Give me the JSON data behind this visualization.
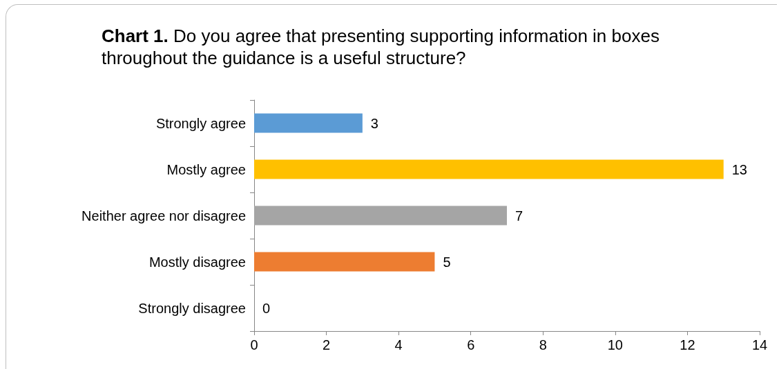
{
  "chart_data": {
    "type": "bar",
    "orientation": "horizontal",
    "title": "Chart 1. Do you agree that presenting supporting information in boxes throughout the guidance is a useful structure?",
    "categories": [
      "Strongly agree",
      "Mostly agree",
      "Neither agree nor disagree",
      "Mostly disagree",
      "Strongly disagree"
    ],
    "values": [
      3,
      13,
      7,
      5,
      0
    ],
    "colors": [
      "#5b9bd5",
      "#ffc000",
      "#a5a5a5",
      "#ed7d31",
      "#4472c4"
    ],
    "xlim": [
      0,
      14
    ],
    "xticks": [
      0,
      2,
      4,
      6,
      8,
      10,
      12,
      14
    ],
    "grid": false,
    "data_labels": true
  }
}
